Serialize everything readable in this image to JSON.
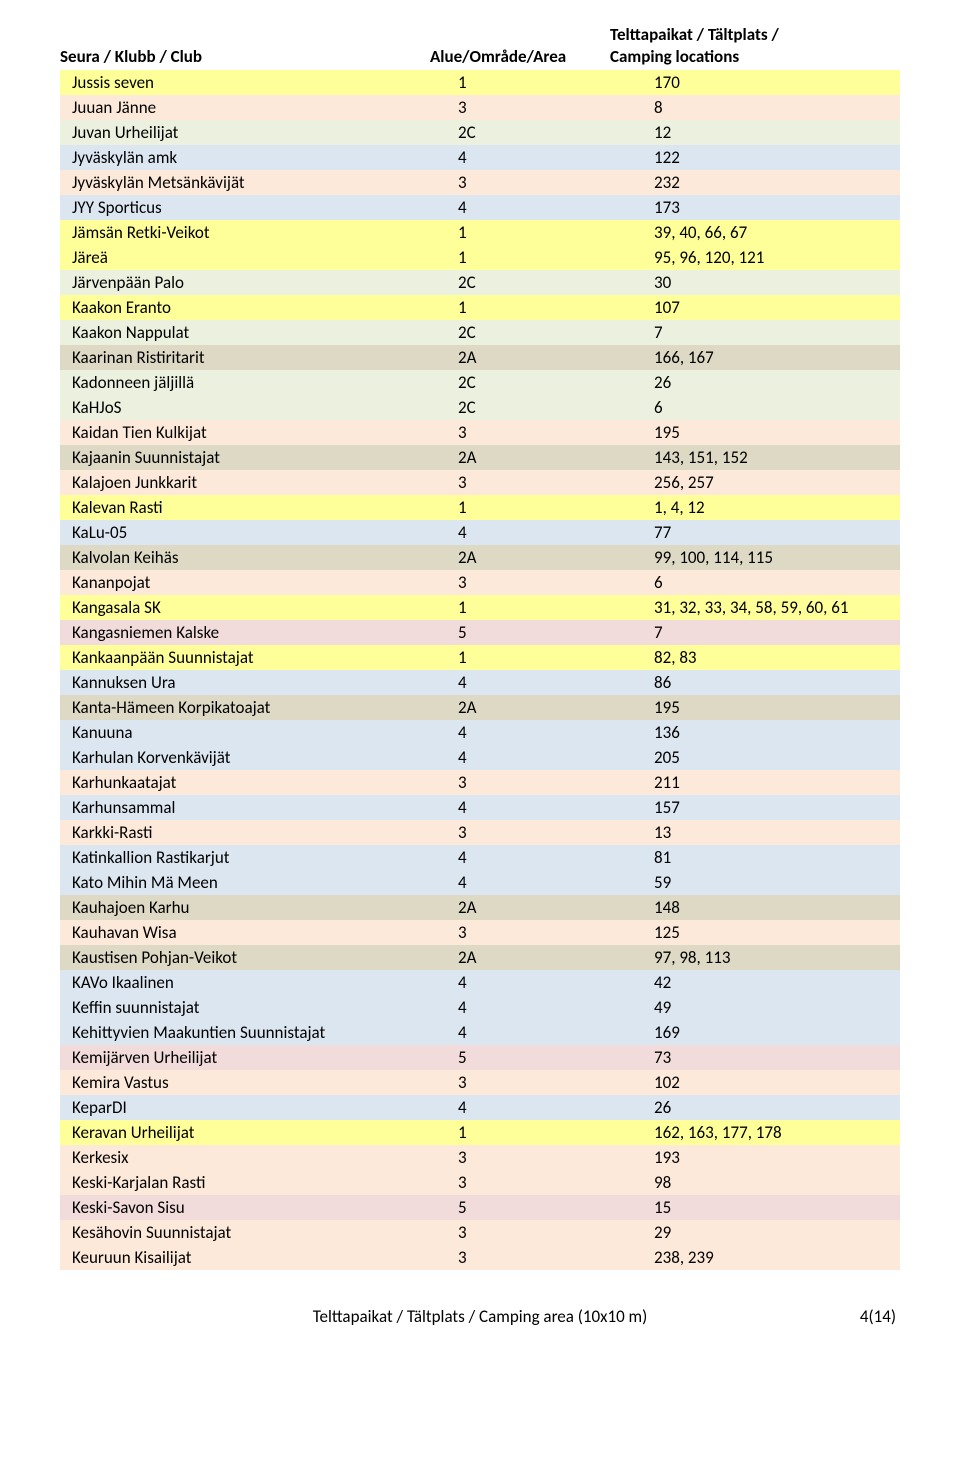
{
  "header": {
    "col1": "Seura / Klubb / Club",
    "col2": "Alue/Område/Area",
    "col3_line1": "Telttapaikat / Tältplats /",
    "col3_line2": "Camping locations"
  },
  "colors": {
    "yellow": "#ffff99",
    "orange": "#fde9d9",
    "green": "#ebf1de",
    "blue": "#dce6f1",
    "brown": "#ddd9c4",
    "pink": "#f2dcdb"
  },
  "rows": [
    {
      "club": "Jussis seven",
      "area": "1",
      "loc": "170",
      "color": "yellow"
    },
    {
      "club": "Juuan Jänne",
      "area": "3",
      "loc": "8",
      "color": "orange"
    },
    {
      "club": "Juvan Urheilijat",
      "area": "2C",
      "loc": "12",
      "color": "green"
    },
    {
      "club": "Jyväskylän amk",
      "area": "4",
      "loc": "122",
      "color": "blue"
    },
    {
      "club": "Jyväskylän Metsänkävijät",
      "area": "3",
      "loc": "232",
      "color": "orange"
    },
    {
      "club": "JYY Sporticus",
      "area": "4",
      "loc": "173",
      "color": "blue"
    },
    {
      "club": "Jämsän Retki-Veikot",
      "area": "1",
      "loc": "39, 40, 66, 67",
      "color": "yellow"
    },
    {
      "club": "Järeä",
      "area": "1",
      "loc": "95, 96, 120, 121",
      "color": "yellow"
    },
    {
      "club": "Järvenpään Palo",
      "area": "2C",
      "loc": "30",
      "color": "green"
    },
    {
      "club": "Kaakon Eranto",
      "area": "1",
      "loc": "107",
      "color": "yellow"
    },
    {
      "club": "Kaakon Nappulat",
      "area": "2C",
      "loc": "7",
      "color": "green"
    },
    {
      "club": "Kaarinan Ristiritarit",
      "area": "2A",
      "loc": "166, 167",
      "color": "brown"
    },
    {
      "club": "Kadonneen jäljillä",
      "area": "2C",
      "loc": "26",
      "color": "green"
    },
    {
      "club": "KaHJoS",
      "area": "2C",
      "loc": "6",
      "color": "green"
    },
    {
      "club": "Kaidan Tien Kulkijat",
      "area": "3",
      "loc": "195",
      "color": "orange"
    },
    {
      "club": "Kajaanin Suunnistajat",
      "area": "2A",
      "loc": "143, 151, 152",
      "color": "brown"
    },
    {
      "club": "Kalajoen Junkkarit",
      "area": "3",
      "loc": "256, 257",
      "color": "orange"
    },
    {
      "club": "Kalevan Rasti",
      "area": "1",
      "loc": "1, 4, 12",
      "color": "yellow"
    },
    {
      "club": "KaLu-05",
      "area": "4",
      "loc": "77",
      "color": "blue"
    },
    {
      "club": "Kalvolan Keihäs",
      "area": "2A",
      "loc": "99, 100, 114, 115",
      "color": "brown"
    },
    {
      "club": "Kananpojat",
      "area": "3",
      "loc": "6",
      "color": "orange"
    },
    {
      "club": "Kangasala SK",
      "area": "1",
      "loc": "31, 32, 33, 34, 58, 59, 60, 61",
      "color": "yellow"
    },
    {
      "club": "Kangasniemen Kalske",
      "area": "5",
      "loc": "7",
      "color": "pink"
    },
    {
      "club": "Kankaanpään Suunnistajat",
      "area": "1",
      "loc": "82, 83",
      "color": "yellow"
    },
    {
      "club": "Kannuksen Ura",
      "area": "4",
      "loc": "86",
      "color": "blue"
    },
    {
      "club": "Kanta-Hämeen Korpikatoajat",
      "area": "2A",
      "loc": "195",
      "color": "brown"
    },
    {
      "club": "Kanuuna",
      "area": "4",
      "loc": "136",
      "color": "blue"
    },
    {
      "club": "Karhulan Korvenkävijät",
      "area": "4",
      "loc": "205",
      "color": "blue"
    },
    {
      "club": "Karhunkaatajat",
      "area": "3",
      "loc": "211",
      "color": "orange"
    },
    {
      "club": "Karhunsammal",
      "area": "4",
      "loc": "157",
      "color": "blue"
    },
    {
      "club": "Karkki-Rasti",
      "area": "3",
      "loc": "13",
      "color": "orange"
    },
    {
      "club": "Katinkallion Rastikarjut",
      "area": "4",
      "loc": "81",
      "color": "blue"
    },
    {
      "club": "Kato Mihin Mä Meen",
      "area": "4",
      "loc": "59",
      "color": "blue"
    },
    {
      "club": "Kauhajoen Karhu",
      "area": "2A",
      "loc": "148",
      "color": "brown"
    },
    {
      "club": "Kauhavan Wisa",
      "area": "3",
      "loc": "125",
      "color": "orange"
    },
    {
      "club": "Kaustisen Pohjan-Veikot",
      "area": "2A",
      "loc": "97, 98, 113",
      "color": "brown"
    },
    {
      "club": "KAVo Ikaalinen",
      "area": "4",
      "loc": "42",
      "color": "blue"
    },
    {
      "club": "Keffin suunnistajat",
      "area": "4",
      "loc": "49",
      "color": "blue"
    },
    {
      "club": "Kehittyvien Maakuntien Suunnistajat",
      "area": "4",
      "loc": "169",
      "color": "blue"
    },
    {
      "club": "Kemijärven Urheilijat",
      "area": "5",
      "loc": "73",
      "color": "pink"
    },
    {
      "club": "Kemira Vastus",
      "area": "3",
      "loc": "102",
      "color": "orange"
    },
    {
      "club": "KeparDI",
      "area": "4",
      "loc": "26",
      "color": "blue"
    },
    {
      "club": "Keravan Urheilijat",
      "area": "1",
      "loc": "162, 163, 177, 178",
      "color": "yellow"
    },
    {
      "club": "Kerkesix",
      "area": "3",
      "loc": "193",
      "color": "orange"
    },
    {
      "club": "Keski-Karjalan Rasti",
      "area": "3",
      "loc": "98",
      "color": "orange"
    },
    {
      "club": "Keski-Savon Sisu",
      "area": "5",
      "loc": "15",
      "color": "pink"
    },
    {
      "club": "Kesähovin Suunnistajat",
      "area": "3",
      "loc": "29",
      "color": "orange"
    },
    {
      "club": "Keuruun Kisailijat",
      "area": "3",
      "loc": "238, 239",
      "color": "orange"
    }
  ],
  "footer": {
    "center": "Telttapaikat / Tältplats / Camping area (10x10 m)",
    "right": "4(14)"
  }
}
